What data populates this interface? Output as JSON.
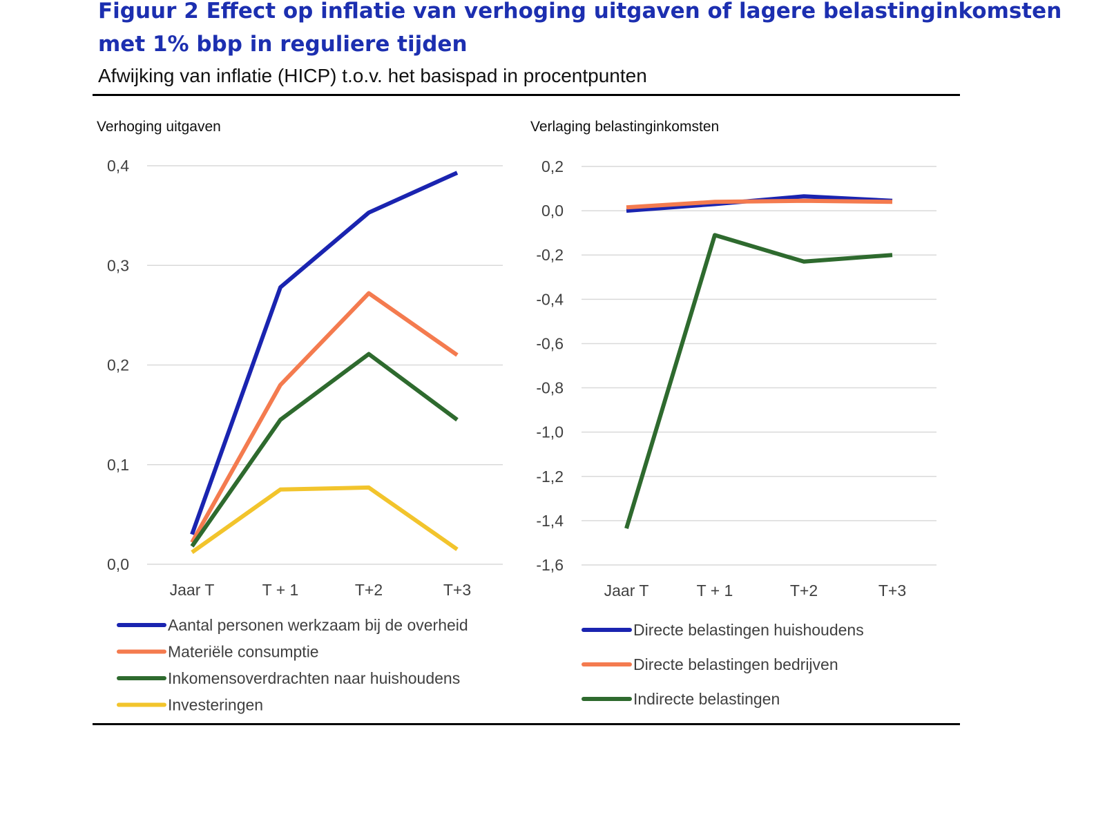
{
  "header": {
    "title": "Figuur 2 Effect op inflatie van verhoging uitgaven of lagere belastinginkomsten met 1% bbp in reguliere tijden",
    "subtitle": "Afwijking van inflatie (HICP) t.o.v. het basispad in procentpunten"
  },
  "chart_data": [
    {
      "type": "line",
      "title": "Verhoging uitgaven",
      "categories": [
        "Jaar T",
        "T + 1",
        "T+2",
        "T+3"
      ],
      "ylim": [
        0,
        0.4
      ],
      "yticks": [
        "0,0",
        "0,1",
        "0,2",
        "0,3",
        "0,4"
      ],
      "grid": true,
      "legend_position": "bottom",
      "series": [
        {
          "name": "Aantal personen werkzaam bij de overheid",
          "color": "#1a24b0",
          "values": [
            0.03,
            0.278,
            0.353,
            0.393
          ]
        },
        {
          "name": "Materiële consumptie",
          "color": "#f47b4f",
          "values": [
            0.022,
            0.18,
            0.272,
            0.21
          ]
        },
        {
          "name": "Inkomensoverdrachten naar huishoudens",
          "color": "#2e6a2e",
          "values": [
            0.018,
            0.145,
            0.211,
            0.145
          ]
        },
        {
          "name": "Investeringen",
          "color": "#f2c42c",
          "values": [
            0.012,
            0.075,
            0.077,
            0.015
          ]
        }
      ]
    },
    {
      "type": "line",
      "title": "Verlaging belastinginkomsten",
      "categories": [
        "Jaar T",
        "T + 1",
        "T+2",
        "T+3"
      ],
      "ylim": [
        -1.6,
        0.2
      ],
      "yticks": [
        "-1,6",
        "-1,4",
        "-1,2",
        "-1,0",
        "-0,8",
        "-0,6",
        "-0,4",
        "-0,2",
        "0,0",
        "0,2"
      ],
      "grid": true,
      "legend_position": "bottom",
      "series": [
        {
          "name": "Directe belastingen huishoudens",
          "color": "#1a24b0",
          "values": [
            0.0,
            0.03,
            0.065,
            0.045
          ]
        },
        {
          "name": "Directe belastingen bedrijven",
          "color": "#f47b4f",
          "values": [
            0.015,
            0.04,
            0.045,
            0.04
          ]
        },
        {
          "name": "Indirecte belastingen",
          "color": "#2e6a2e",
          "values": [
            -1.435,
            -0.11,
            -0.23,
            -0.2
          ]
        }
      ]
    }
  ]
}
